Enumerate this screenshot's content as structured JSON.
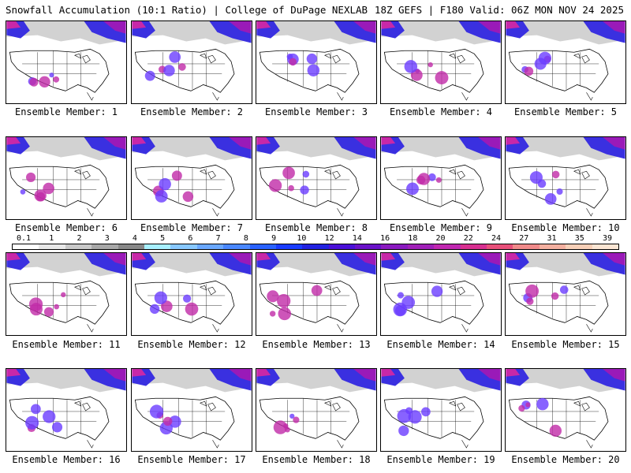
{
  "header": {
    "title": "Snowfall Accumulation (10:1 Ratio) | College of DuPage NEXLAB",
    "valid": "18Z GEFS | F180 Valid: 06Z MON NOV 24 2025"
  },
  "colorbar": {
    "labels": [
      "0.1",
      "1",
      "2",
      "3",
      "4",
      "5",
      "6",
      "7",
      "8",
      "9",
      "10",
      "12",
      "14",
      "16",
      "18",
      "20",
      "22",
      "24",
      "27",
      "31",
      "35",
      "39"
    ],
    "colors": [
      "#ffffff",
      "#e8e8e8",
      "#c8c8c8",
      "#a8a8a8",
      "#888888",
      "#a8f0ff",
      "#88c8ff",
      "#6aa8ff",
      "#4a88ff",
      "#2a62ff",
      "#1a3cff",
      "#2222e0",
      "#4a10d8",
      "#6a12c8",
      "#8a1ac0",
      "#a020b8",
      "#c028b0",
      "#d83090",
      "#e8507a",
      "#f08a8a",
      "#f4b0a0",
      "#f8d0b8",
      "#fbe6d4"
    ]
  },
  "members": [
    {
      "label": "Ensemble Member: 1"
    },
    {
      "label": "Ensemble Member: 2"
    },
    {
      "label": "Ensemble Member: 3"
    },
    {
      "label": "Ensemble Member: 4"
    },
    {
      "label": "Ensemble Member: 5"
    },
    {
      "label": "Ensemble Member: 6"
    },
    {
      "label": "Ensemble Member: 7"
    },
    {
      "label": "Ensemble Member: 8"
    },
    {
      "label": "Ensemble Member: 9"
    },
    {
      "label": "Ensemble Member: 10"
    },
    {
      "label": "Ensemble Member: 11"
    },
    {
      "label": "Ensemble Member: 12"
    },
    {
      "label": "Ensemble Member: 13"
    },
    {
      "label": "Ensemble Member: 14"
    },
    {
      "label": "Ensemble Member: 15"
    },
    {
      "label": "Ensemble Member: 16"
    },
    {
      "label": "Ensemble Member: 17"
    },
    {
      "label": "Ensemble Member: 18"
    },
    {
      "label": "Ensemble Member: 19"
    },
    {
      "label": "Ensemble Member: 20"
    }
  ]
}
